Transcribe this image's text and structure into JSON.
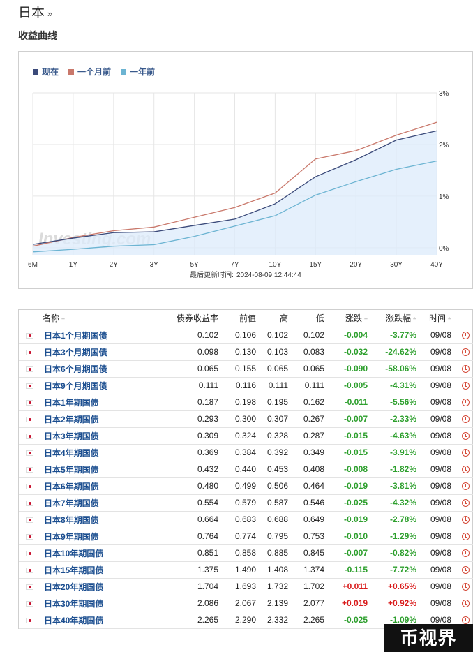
{
  "header": {
    "country": "日本",
    "raquo": "»",
    "section_title": "收益曲线"
  },
  "chart_data": {
    "type": "line",
    "categories": [
      "6M",
      "1Y",
      "2Y",
      "3Y",
      "5Y",
      "7Y",
      "10Y",
      "15Y",
      "20Y",
      "30Y",
      "40Y"
    ],
    "y_ticks": [
      "0%",
      "1%",
      "2%",
      "3%"
    ],
    "ylim": [
      -0.15,
      3.0
    ],
    "y_axis_side": "right",
    "grid": true,
    "legend_position": "top-left",
    "series": [
      {
        "name": "现在",
        "color": "#3b4a7a",
        "values": [
          0.065,
          0.187,
          0.293,
          0.309,
          0.432,
          0.554,
          0.851,
          1.375,
          1.704,
          2.086,
          2.265
        ],
        "fill": true
      },
      {
        "name": "一个月前",
        "color": "#c9786b",
        "values": [
          0.03,
          0.2,
          0.33,
          0.4,
          0.59,
          0.78,
          1.06,
          1.72,
          1.88,
          2.18,
          2.43
        ]
      },
      {
        "name": "一年前",
        "color": "#6cb4d2",
        "values": [
          -0.08,
          -0.03,
          0.03,
          0.06,
          0.22,
          0.42,
          0.62,
          1.02,
          1.28,
          1.52,
          1.68
        ]
      }
    ],
    "watermark": "Investing.com",
    "updated_label": "最后更新时间:",
    "updated_value": "2024-08-09 12:44:44"
  },
  "table": {
    "headers": {
      "name": "名称",
      "yield": "债券收益率",
      "prev": "前值",
      "high": "高",
      "low": "低",
      "chg": "涨跌",
      "chg_pct": "涨跌幅",
      "time": "时间"
    },
    "sort_glyph": "÷",
    "rows": [
      {
        "name": "日本1个月期国债",
        "yield": "0.102",
        "prev": "0.106",
        "high": "0.102",
        "low": "0.102",
        "chg": "-0.004",
        "chg_pct": "-3.77%",
        "time": "09/08",
        "dir": "neg"
      },
      {
        "name": "日本3个月期国债",
        "yield": "0.098",
        "prev": "0.130",
        "high": "0.103",
        "low": "0.083",
        "chg": "-0.032",
        "chg_pct": "-24.62%",
        "time": "09/08",
        "dir": "neg"
      },
      {
        "name": "日本6个月期国债",
        "yield": "0.065",
        "prev": "0.155",
        "high": "0.065",
        "low": "0.065",
        "chg": "-0.090",
        "chg_pct": "-58.06%",
        "time": "09/08",
        "dir": "neg"
      },
      {
        "name": "日本9个月期国债",
        "yield": "0.111",
        "prev": "0.116",
        "high": "0.111",
        "low": "0.111",
        "chg": "-0.005",
        "chg_pct": "-4.31%",
        "time": "09/08",
        "dir": "neg"
      },
      {
        "name": "日本1年期国债",
        "yield": "0.187",
        "prev": "0.198",
        "high": "0.195",
        "low": "0.162",
        "chg": "-0.011",
        "chg_pct": "-5.56%",
        "time": "09/08",
        "dir": "neg"
      },
      {
        "name": "日本2年期国债",
        "yield": "0.293",
        "prev": "0.300",
        "high": "0.307",
        "low": "0.267",
        "chg": "-0.007",
        "chg_pct": "-2.33%",
        "time": "09/08",
        "dir": "neg"
      },
      {
        "name": "日本3年期国债",
        "yield": "0.309",
        "prev": "0.324",
        "high": "0.328",
        "low": "0.287",
        "chg": "-0.015",
        "chg_pct": "-4.63%",
        "time": "09/08",
        "dir": "neg"
      },
      {
        "name": "日本4年期国债",
        "yield": "0.369",
        "prev": "0.384",
        "high": "0.392",
        "low": "0.349",
        "chg": "-0.015",
        "chg_pct": "-3.91%",
        "time": "09/08",
        "dir": "neg"
      },
      {
        "name": "日本5年期国债",
        "yield": "0.432",
        "prev": "0.440",
        "high": "0.453",
        "low": "0.408",
        "chg": "-0.008",
        "chg_pct": "-1.82%",
        "time": "09/08",
        "dir": "neg"
      },
      {
        "name": "日本6年期国债",
        "yield": "0.480",
        "prev": "0.499",
        "high": "0.506",
        "low": "0.464",
        "chg": "-0.019",
        "chg_pct": "-3.81%",
        "time": "09/08",
        "dir": "neg"
      },
      {
        "name": "日本7年期国债",
        "yield": "0.554",
        "prev": "0.579",
        "high": "0.587",
        "low": "0.546",
        "chg": "-0.025",
        "chg_pct": "-4.32%",
        "time": "09/08",
        "dir": "neg"
      },
      {
        "name": "日本8年期国债",
        "yield": "0.664",
        "prev": "0.683",
        "high": "0.688",
        "low": "0.649",
        "chg": "-0.019",
        "chg_pct": "-2.78%",
        "time": "09/08",
        "dir": "neg"
      },
      {
        "name": "日本9年期国债",
        "yield": "0.764",
        "prev": "0.774",
        "high": "0.795",
        "low": "0.753",
        "chg": "-0.010",
        "chg_pct": "-1.29%",
        "time": "09/08",
        "dir": "neg"
      },
      {
        "name": "日本10年期国债",
        "yield": "0.851",
        "prev": "0.858",
        "high": "0.885",
        "low": "0.845",
        "chg": "-0.007",
        "chg_pct": "-0.82%",
        "time": "09/08",
        "dir": "neg"
      },
      {
        "name": "日本15年期国债",
        "yield": "1.375",
        "prev": "1.490",
        "high": "1.408",
        "low": "1.374",
        "chg": "-0.115",
        "chg_pct": "-7.72%",
        "time": "09/08",
        "dir": "neg"
      },
      {
        "name": "日本20年期国债",
        "yield": "1.704",
        "prev": "1.693",
        "high": "1.732",
        "low": "1.702",
        "chg": "+0.011",
        "chg_pct": "+0.65%",
        "time": "09/08",
        "dir": "pos"
      },
      {
        "name": "日本30年期国债",
        "yield": "2.086",
        "prev": "2.067",
        "high": "2.139",
        "low": "2.077",
        "chg": "+0.019",
        "chg_pct": "+0.92%",
        "time": "09/08",
        "dir": "pos"
      },
      {
        "name": "日本40年期国债",
        "yield": "2.265",
        "prev": "2.290",
        "high": "2.332",
        "low": "2.265",
        "chg": "-0.025",
        "chg_pct": "-1.09%",
        "time": "09/08",
        "dir": "neg"
      }
    ]
  },
  "overlay": {
    "watermark_text": "币视界"
  }
}
